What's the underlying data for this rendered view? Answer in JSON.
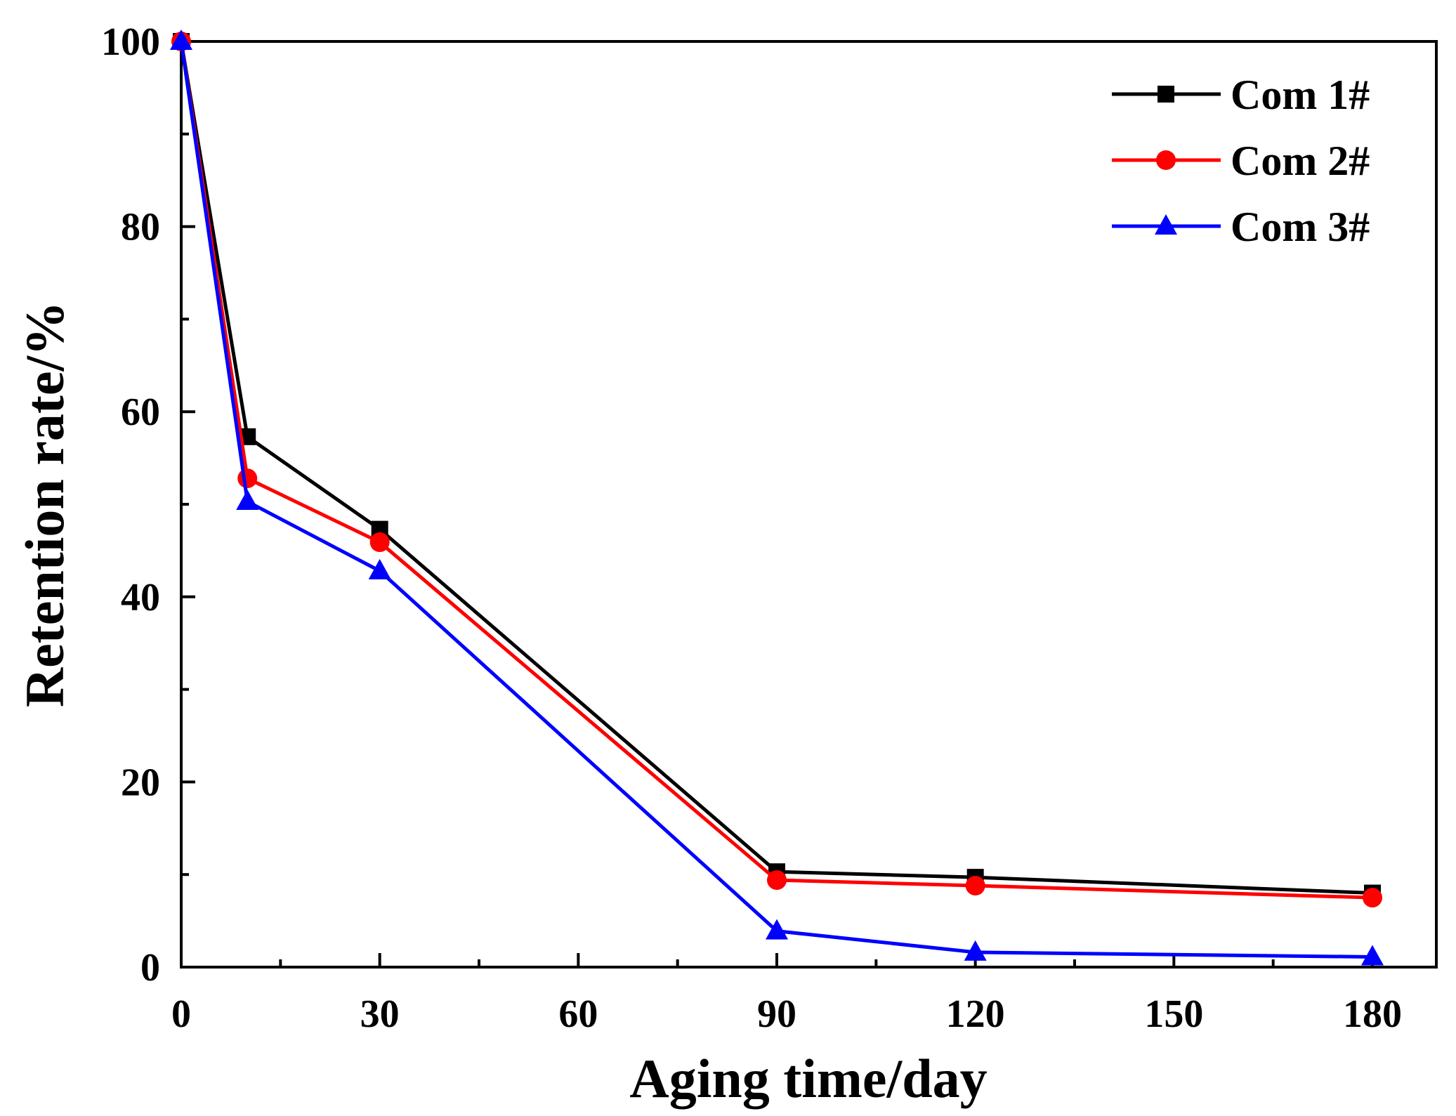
{
  "chart_data": {
    "type": "line",
    "xlabel": "Aging time/day",
    "ylabel": "Retention rate/%",
    "xlim": [
      0,
      190
    ],
    "ylim": [
      0,
      100
    ],
    "xticks": [
      0,
      30,
      60,
      90,
      120,
      150,
      180
    ],
    "yticks": [
      0,
      20,
      40,
      60,
      80,
      100
    ],
    "x_minor_step": 15,
    "y_minor_step": 10,
    "grid": false,
    "legend_position": "top-right",
    "x": [
      0,
      10,
      30,
      90,
      120,
      180
    ],
    "series": [
      {
        "name": "Com 1#",
        "color": "#000000",
        "marker": "square",
        "values": [
          100,
          57.3,
          47.3,
          10.3,
          9.7,
          8.0
        ]
      },
      {
        "name": "Com 2#",
        "color": "#ff0000",
        "marker": "circle",
        "values": [
          100,
          52.8,
          45.9,
          9.4,
          8.8,
          7.5
        ]
      },
      {
        "name": "Com 3#",
        "color": "#0000ff",
        "marker": "triangle",
        "values": [
          100,
          50.3,
          42.8,
          3.9,
          1.6,
          1.1
        ]
      }
    ]
  }
}
